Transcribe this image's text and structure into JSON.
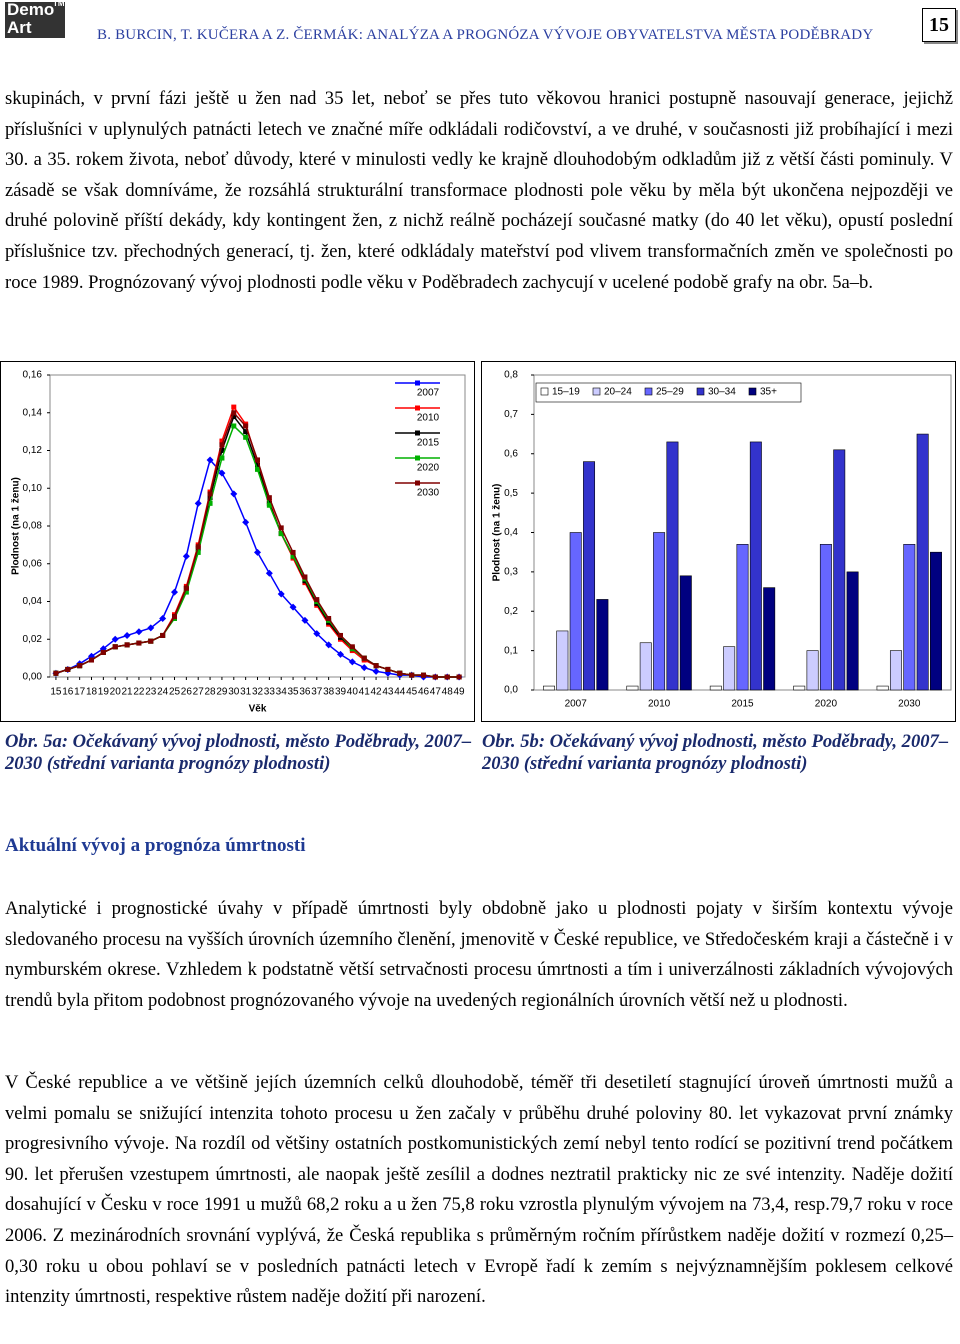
{
  "header": {
    "logo": [
      "Demo",
      "Art",
      "TM"
    ],
    "title": "B. BURCIN, T. KUČERA A Z. ČERMÁK: ANALÝZA A PROGNÓZA VÝVOJE OBYVATELSTVA MĚSTA PODĚBRADY",
    "page_number": "15"
  },
  "paragraphs": [
    "skupinách, v první fázi ještě u žen nad 35 let, neboť se přes tuto věkovou hranici postupně nasouvají generace, jejichž příslušníci v uplynulých patnácti letech ve značné míře odkládali rodičovství, a ve druhé, v současnosti již probíhající i mezi 30. a 35. rokem života, neboť důvody, které v minulosti vedly ke krajně dlouhodobým odkladům již z větší části pominuly. V zásadě se však domníváme, že rozsáhlá strukturální transformace plodnosti pole věku by měla být ukončena nejpozději ve druhé polovině příští dekády, kdy kontingent žen, z nichž reálně pocházejí současné matky (do 40 let věku), opustí poslední příslušnice tzv. přechodných generací, tj. žen, které odkládaly mateřství pod vlivem transformačních změn ve společnosti po roce 1989. Prognózovaný vývoj plodnosti podle věku v Poděbradech zachycují v ucelené podobě grafy na obr. 5a–b.",
    "Analytické i prognostické úvahy v případě úmrtnosti byly obdobně jako u plodnosti pojaty v širším kontextu vývoje sledovaného procesu na vyšších úrovních územního členění, jmenovitě v České republice, ve Středočeském kraji a částečně i v nymburském okrese. Vzhledem k podstatně větší setrvačnosti procesu úmrtnosti a tím i univerzálnosti základních vývojových trendů byla přitom podobnost prognózovaného vývoje na uvedených regionálních úrovních větší než u plodnosti.",
    "V České republice a ve většině jejích územních celků dlouhodobě, téměř tři desetiletí stagnující úroveň úmrtnosti mužů a velmi pomalu se snižující intenzita tohoto procesu u žen začaly v průběhu druhé poloviny 80. let vykazovat první známky progresivního vývoje. Na rozdíl od většiny ostatních postkomunistických zemí nebyl tento rodící se pozitivní trend počátkem 90. let přerušen vzestupem úmrtnosti, ale naopak ještě zesílil a dodnes neztratil prakticky nic ze své intenzity. Naděje dožití dosahující v Česku v roce 1991 u mužů 68,2 roku a u žen 75,8 roku vzrostla plynulým vývojem na 73,4, resp.79,7 roku v roce 2006. Z mezinárodních srovnání vyplývá, že Česká republika s průměrným ročním přírůstkem naděje dožití v rozmezí 0,25–0,30 roku u obou pohlaví se v posledních patnácti letech v Evropě řadí k zemím s nejvýznamnějším poklesem celkové intenzity úmrtnosti, respektive růstem naděje dožití při narození."
  ],
  "section_heading": "Aktuální vývoj a prognóza úmrtnosti",
  "captions": [
    "Obr. 5a: Očekávaný vývoj plodnosti, město Poděbrady, 2007–2030 (střední varianta prognózy plodnosti)",
    "Obr. 5b: Očekávaný vývoj plodnosti, město Poděbrady, 2007–2030 (střední varianta prognózy plodnosti)"
  ],
  "chart_data": [
    {
      "type": "line",
      "y_label": "Plodnost (na 1 ženu)",
      "x_label": "Věk",
      "x": [
        15,
        16,
        17,
        18,
        19,
        20,
        21,
        22,
        23,
        24,
        25,
        26,
        27,
        28,
        29,
        30,
        31,
        32,
        33,
        34,
        35,
        36,
        37,
        38,
        39,
        40,
        41,
        42,
        43,
        44,
        45,
        46,
        47,
        48,
        49
      ],
      "ylim": [
        0,
        0.16
      ],
      "yticks": [
        {
          "value": 0,
          "label": "0,00"
        },
        {
          "value": 0.02,
          "label": "0,02"
        },
        {
          "value": 0.04,
          "label": "0,04"
        },
        {
          "value": 0.06,
          "label": "0,06"
        },
        {
          "value": 0.08,
          "label": "0,08"
        },
        {
          "value": 0.1,
          "label": "0,10"
        },
        {
          "value": 0.12,
          "label": "0,12"
        },
        {
          "value": 0.14,
          "label": "0,14"
        },
        {
          "value": 0.16,
          "label": "0,16"
        }
      ],
      "series": [
        {
          "name": "2007",
          "color": "#0000ff",
          "values": [
            0.002,
            0.004,
            0.007,
            0.011,
            0.015,
            0.02,
            0.022,
            0.024,
            0.026,
            0.031,
            0.045,
            0.064,
            0.092,
            0.115,
            0.108,
            0.097,
            0.082,
            0.066,
            0.055,
            0.044,
            0.037,
            0.03,
            0.023,
            0.017,
            0.012,
            0.008,
            0.005,
            0.003,
            0.002,
            0.001,
            0.001,
            0,
            0,
            0,
            0
          ]
        },
        {
          "name": "2010",
          "color": "#ff0000",
          "values": [
            0.002,
            0.004,
            0.006,
            0.009,
            0.013,
            0.016,
            0.017,
            0.018,
            0.019,
            0.022,
            0.033,
            0.048,
            0.07,
            0.098,
            0.125,
            0.143,
            0.134,
            0.114,
            0.093,
            0.076,
            0.063,
            0.05,
            0.038,
            0.028,
            0.02,
            0.014,
            0.009,
            0.006,
            0.004,
            0.002,
            0.001,
            0.001,
            0,
            0,
            0
          ]
        },
        {
          "name": "2015",
          "color": "#000000",
          "values": [
            0.002,
            0.004,
            0.006,
            0.009,
            0.013,
            0.016,
            0.017,
            0.018,
            0.019,
            0.022,
            0.032,
            0.047,
            0.068,
            0.095,
            0.12,
            0.138,
            0.13,
            0.112,
            0.092,
            0.076,
            0.064,
            0.051,
            0.039,
            0.029,
            0.021,
            0.015,
            0.01,
            0.006,
            0.004,
            0.002,
            0.001,
            0.001,
            0,
            0,
            0
          ]
        },
        {
          "name": "2020",
          "color": "#00b000",
          "values": [
            0.002,
            0.004,
            0.006,
            0.009,
            0.013,
            0.016,
            0.017,
            0.018,
            0.019,
            0.022,
            0.031,
            0.045,
            0.066,
            0.092,
            0.116,
            0.133,
            0.127,
            0.11,
            0.091,
            0.076,
            0.064,
            0.052,
            0.04,
            0.03,
            0.022,
            0.015,
            0.01,
            0.006,
            0.004,
            0.002,
            0.001,
            0.001,
            0,
            0,
            0
          ]
        },
        {
          "name": "2030",
          "color": "#800000",
          "values": [
            0.002,
            0.004,
            0.006,
            0.009,
            0.013,
            0.016,
            0.017,
            0.018,
            0.019,
            0.022,
            0.032,
            0.047,
            0.069,
            0.097,
            0.123,
            0.14,
            0.133,
            0.115,
            0.095,
            0.079,
            0.066,
            0.053,
            0.041,
            0.031,
            0.022,
            0.016,
            0.01,
            0.006,
            0.004,
            0.002,
            0.001,
            0.001,
            0,
            0,
            0
          ]
        }
      ]
    },
    {
      "type": "bar",
      "y_label": "Plodnost (na 1 ženu)",
      "categories": [
        "2007",
        "2010",
        "2015",
        "2020",
        "2030"
      ],
      "ylim": [
        0,
        0.8
      ],
      "yticks": [
        {
          "value": 0,
          "label": "0,0"
        },
        {
          "value": 0.1,
          "label": "0,1"
        },
        {
          "value": 0.2,
          "label": "0,2"
        },
        {
          "value": 0.3,
          "label": "0,3"
        },
        {
          "value": 0.4,
          "label": "0,4"
        },
        {
          "value": 0.5,
          "label": "0,5"
        },
        {
          "value": 0.6,
          "label": "0,6"
        },
        {
          "value": 0.7,
          "label": "0,7"
        },
        {
          "value": 0.8,
          "label": "0,8"
        }
      ],
      "series": [
        {
          "name": "15–19",
          "color": "#ffffff",
          "values": [
            0.01,
            0.01,
            0.01,
            0.01,
            0.01
          ]
        },
        {
          "name": "20–24",
          "color": "#ccccff",
          "values": [
            0.15,
            0.12,
            0.11,
            0.1,
            0.1
          ]
        },
        {
          "name": "25–29",
          "color": "#6666ff",
          "values": [
            0.4,
            0.4,
            0.37,
            0.37,
            0.37
          ]
        },
        {
          "name": "30–34",
          "color": "#3333cc",
          "values": [
            0.58,
            0.63,
            0.63,
            0.61,
            0.65
          ]
        },
        {
          "name": "35+",
          "color": "#000080",
          "values": [
            0.23,
            0.29,
            0.26,
            0.3,
            0.35
          ]
        }
      ]
    }
  ]
}
